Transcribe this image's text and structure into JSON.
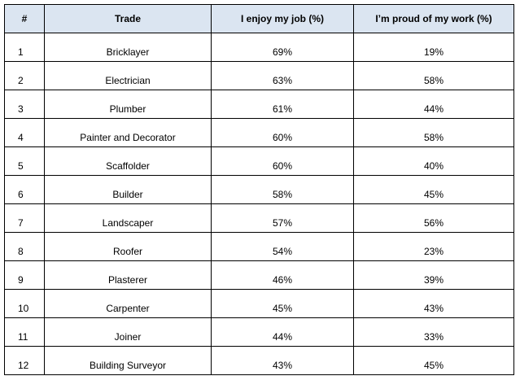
{
  "chart_data": {
    "type": "table",
    "columns": [
      "#",
      "Trade",
      "I enjoy my job (%)",
      "I’m proud of my work (%)"
    ],
    "rows": [
      [
        "1",
        "Bricklayer",
        "69%",
        "19%"
      ],
      [
        "2",
        "Electrician",
        "63%",
        "58%"
      ],
      [
        "3",
        "Plumber",
        "61%",
        "44%"
      ],
      [
        "4",
        "Painter and Decorator",
        "60%",
        "58%"
      ],
      [
        "5",
        "Scaffolder",
        "60%",
        "40%"
      ],
      [
        "6",
        "Builder",
        "58%",
        "45%"
      ],
      [
        "7",
        "Landscaper",
        "57%",
        "56%"
      ],
      [
        "8",
        "Roofer",
        "54%",
        "23%"
      ],
      [
        "9",
        "Plasterer",
        "46%",
        "39%"
      ],
      [
        "10",
        "Carpenter",
        "45%",
        "43%"
      ],
      [
        "11",
        "Joiner",
        "44%",
        "33%"
      ],
      [
        "12",
        "Building Surveyor",
        "43%",
        "45%"
      ]
    ],
    "header_color": "#dbe5f1"
  }
}
